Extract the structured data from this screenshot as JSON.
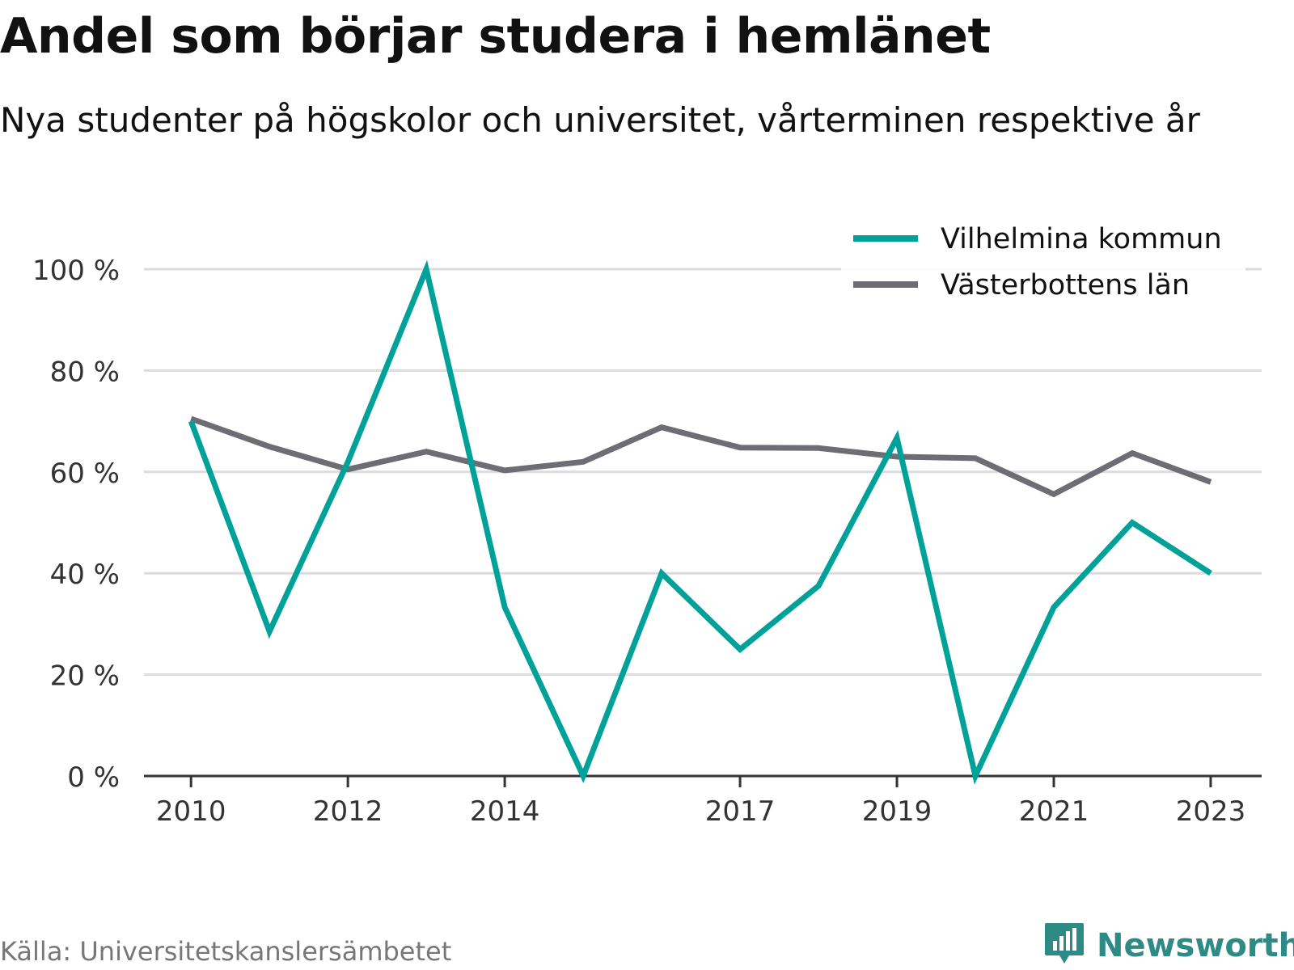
{
  "title": "Andel som börjar studera i hemlänet",
  "subtitle": "Nya studenter på högskolor och universitet, vårterminen respektive år",
  "source": "Källa: Universitetskanslersämbetet",
  "brand": "Newsworthy",
  "colors": {
    "accent": "#00a199",
    "gray": "#6e6c74",
    "grid": "#dcdcdc",
    "axis": "#333333",
    "brand": "#2d8a85"
  },
  "chart_data": {
    "type": "line",
    "x": [
      2010,
      2011,
      2012,
      2013,
      2014,
      2015,
      2016,
      2017,
      2018,
      2019,
      2020,
      2021,
      2022,
      2023
    ],
    "xticks": [
      "2010",
      "2012",
      "2014",
      "2017",
      "2019",
      "2021",
      "2023"
    ],
    "yticks": [
      "0 %",
      "20 %",
      "40 %",
      "60 %",
      "80 %",
      "100 %"
    ],
    "ylim": [
      0,
      100
    ],
    "xlim": [
      2009.4,
      2023.65
    ],
    "xlabel": "",
    "ylabel": "",
    "grid": true,
    "legend_position": "top-right",
    "series": [
      {
        "name": "Vilhelmina kommun",
        "color": "#00a199",
        "values": [
          70,
          28.5,
          62,
          100,
          33.3,
          0,
          40,
          25,
          37.5,
          66.7,
          0,
          33.3,
          50,
          40
        ]
      },
      {
        "name": "Västerbottens län",
        "color": "#6e6c74",
        "values": [
          70.5,
          65,
          60.5,
          64,
          60.3,
          62,
          68.8,
          64.8,
          64.7,
          63,
          62.7,
          55.6,
          63.7,
          58
        ]
      }
    ]
  }
}
